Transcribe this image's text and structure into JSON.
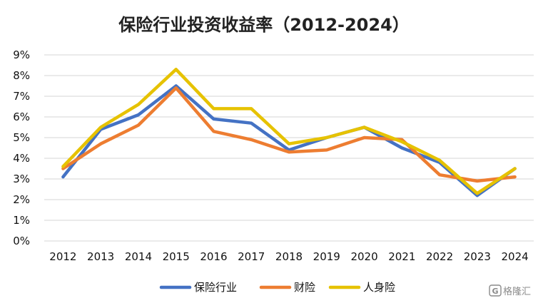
{
  "chart_data": {
    "type": "line",
    "title": "保险行业投资收益率（2012-2024）",
    "xlabel": "",
    "ylabel": "",
    "x": [
      "2012",
      "2013",
      "2014",
      "2015",
      "2016",
      "2017",
      "2018",
      "2019",
      "2020",
      "2021",
      "2022",
      "2023",
      "2024"
    ],
    "y_ticks": [
      "0%",
      "1%",
      "2%",
      "3%",
      "4%",
      "5%",
      "6%",
      "7%",
      "8%",
      "9%"
    ],
    "ylim": [
      0,
      9
    ],
    "y_unit": "%",
    "grid": true,
    "legend_position": "bottom",
    "series": [
      {
        "name": "保险行业",
        "color": "#4472c4",
        "values": [
          3.1,
          5.4,
          6.1,
          7.5,
          5.9,
          5.7,
          4.4,
          5.0,
          5.5,
          4.5,
          3.8,
          2.2,
          3.5
        ]
      },
      {
        "name": "财险",
        "color": "#ed7d31",
        "values": [
          3.5,
          4.7,
          5.6,
          7.4,
          5.3,
          4.9,
          4.3,
          4.4,
          5.0,
          4.9,
          3.2,
          2.9,
          3.1
        ]
      },
      {
        "name": "人身险",
        "color": "#e6c200",
        "values": [
          3.6,
          5.5,
          6.6,
          8.3,
          6.4,
          6.4,
          4.7,
          5.0,
          5.5,
          4.8,
          3.9,
          2.3,
          3.5
        ]
      }
    ]
  },
  "watermark": {
    "text": "格隆汇",
    "icon": "g-logo-icon"
  }
}
